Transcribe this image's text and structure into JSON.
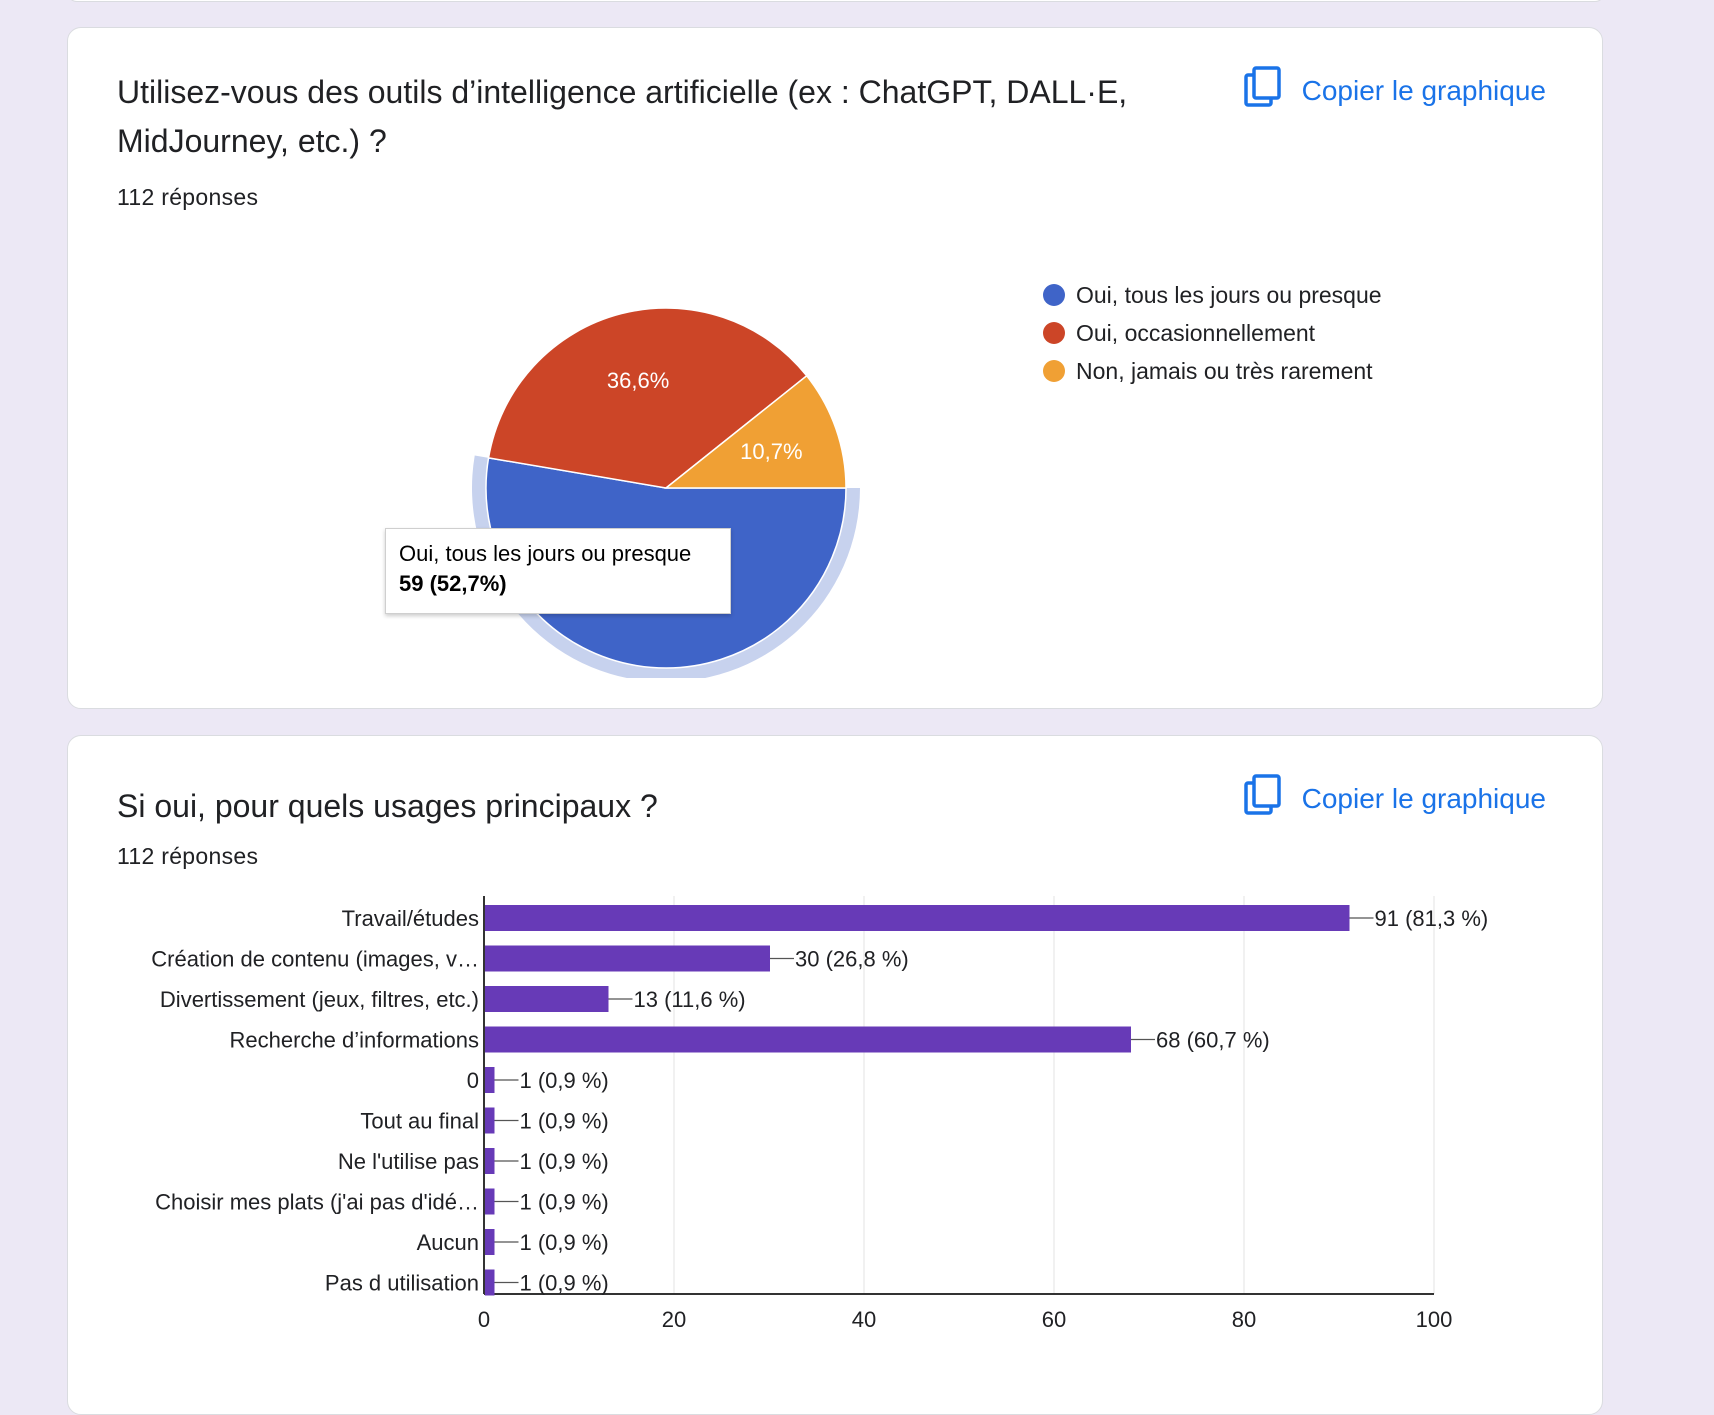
{
  "cards": [
    {
      "title": "Utilisez-vous des outils d’intelligence artificielle (ex : ChatGPT, DALL·E, MidJourney, etc.) ?",
      "responses": "112 réponses",
      "copy_label": "Copier le graphique"
    },
    {
      "title": "Si oui, pour quels usages principaux ?",
      "responses": "112 réponses",
      "copy_label": "Copier le graphique"
    }
  ],
  "icons": {
    "copy": "copy-icon"
  },
  "colors": {
    "accent": "#1a73e8",
    "bar": "#673ab7",
    "pie": [
      "#3f64c8",
      "#cc4527",
      "#f0a034"
    ]
  },
  "tooltip": {
    "label": "Oui, tous les jours ou presque",
    "value": "59 (52,7%)"
  },
  "chart_data": [
    {
      "type": "pie",
      "categories": [
        "Oui, tous les jours ou presque",
        "Oui, occasionnellement",
        "Non, jamais ou très rarement"
      ],
      "values": [
        59,
        41,
        12
      ],
      "labels": [
        "",
        "36,6%",
        "10,7%"
      ],
      "legend": "right",
      "highlighted": "Oui, tous les jours ou presque"
    },
    {
      "type": "bar",
      "orientation": "horizontal",
      "categories": [
        "Travail/études",
        "Création de contenu (images, v…",
        "Divertissement (jeux, filtres, etc.)",
        "Recherche d’informations",
        "0",
        "Tout au final",
        "Ne l'utilise pas",
        "Choisir mes plats (j'ai pas d'idé…",
        "Aucun",
        "Pas d utilisation"
      ],
      "values": [
        91,
        30,
        13,
        68,
        1,
        1,
        1,
        1,
        1,
        1
      ],
      "data_labels": [
        "91 (81,3 %)",
        "30 (26,8 %)",
        "13 (11,6 %)",
        "68 (60,7 %)",
        "1 (0,9 %)",
        "1 (0,9 %)",
        "1 (0,9 %)",
        "1 (0,9 %)",
        "1 (0,9 %)",
        "1 (0,9 %)"
      ],
      "xlim": [
        0,
        100
      ],
      "xticks": [
        "0",
        "20",
        "40",
        "60",
        "80",
        "100"
      ],
      "grid": true
    }
  ]
}
